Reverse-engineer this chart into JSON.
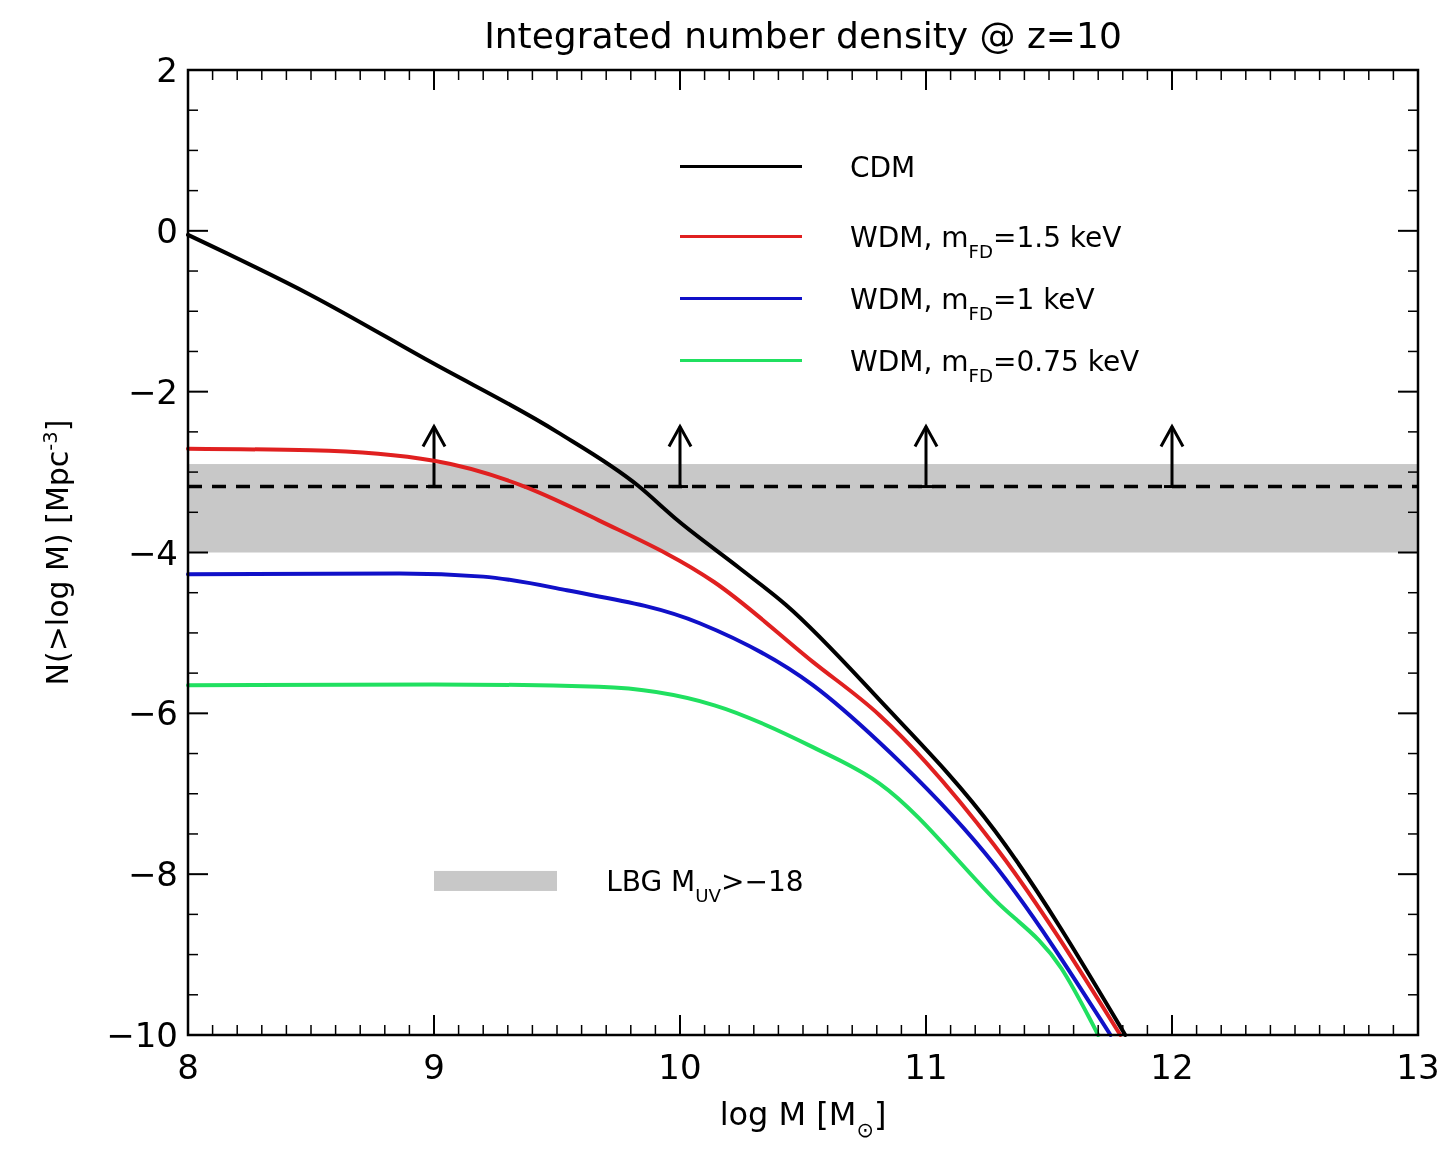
{
  "chart_data": {
    "type": "line",
    "title": "Integrated number density @ z=10",
    "xlabel": "log M [M$_{⊙}$]",
    "ylabel": "N(>log M)  [Mpc$^{-3}$]",
    "xlim": [
      8,
      13
    ],
    "xticks": [
      8,
      9,
      10,
      11,
      12,
      13
    ],
    "ylim": [
      -10,
      2
    ],
    "yticks": [
      -10,
      -8,
      -6,
      -4,
      -2,
      0,
      2
    ],
    "grid": false,
    "legend": "top right",
    "line_style": "solid",
    "marker": "none",
    "series": [
      {
        "name": "CDM",
        "color": "#000000",
        "x": [
          8,
          8.5,
          8.98,
          9.5,
          9.83,
          9.99,
          10.24,
          10.43,
          10.81,
          11.28,
          11.81
        ],
        "values": [
          -0.05,
          -0.8,
          -1.62,
          -2.5,
          -3.17,
          -3.6,
          -4.19,
          -4.65,
          -5.83,
          -7.46,
          -10
        ]
      },
      {
        "name": "WDM, m$_{FD}$=1.5 keV",
        "color": "#e02020",
        "x": [
          8,
          8.5,
          9,
          9.36,
          9.67,
          10.14,
          10.54,
          10.81,
          11.28,
          11.79
        ],
        "values": [
          -2.71,
          -2.73,
          -2.86,
          -3.17,
          -3.6,
          -4.37,
          -5.36,
          -6.02,
          -7.65,
          -10
        ]
      },
      {
        "name": "WDM, m$_{FD}$=1 keV",
        "color": "#1010c8",
        "x": [
          8,
          8.86,
          9.2,
          9.54,
          10.08,
          10.54,
          10.81,
          11.28,
          11.75
        ],
        "values": [
          -4.27,
          -4.26,
          -4.3,
          -4.47,
          -4.88,
          -5.65,
          -6.36,
          -7.89,
          -10
        ]
      },
      {
        "name": "WDM, m$_{FD}$=0.75 keV",
        "color": "#20e060",
        "x": [
          8,
          9,
          9.67,
          10.14,
          10.54,
          10.81,
          11.28,
          11.55,
          11.7
        ],
        "values": [
          -5.65,
          -5.64,
          -5.67,
          -5.9,
          -6.42,
          -6.87,
          -8.32,
          -9.17,
          -10
        ]
      }
    ],
    "bands": [
      {
        "axis": "y",
        "from": -4,
        "to": -2.9,
        "label": "LBG M$_{UV}$>−18",
        "color": "#c8c8c8"
      }
    ],
    "ref_lines": [
      {
        "axis": "y",
        "value": -3.18,
        "color": "#000000",
        "line_style": "dashed"
      }
    ]
  }
}
